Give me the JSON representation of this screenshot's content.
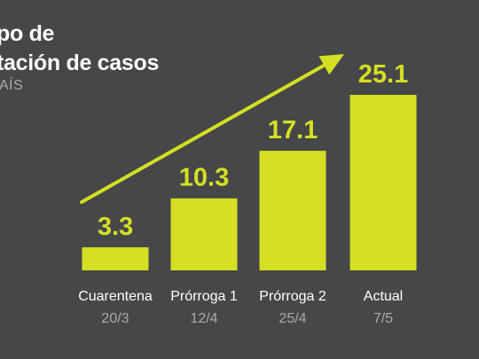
{
  "header": {
    "title_line1": "po de",
    "title_line2": "tación de casos",
    "subtitle": "AÍS"
  },
  "colors": {
    "background": "#464749",
    "accent": "#d4e021",
    "category_label": "#ffffff",
    "date_label": "#a9aaac"
  },
  "chart_data": {
    "type": "bar",
    "categories": [
      "Cuarentena",
      "Prórroga 1",
      "Prórroga 2",
      "Actual"
    ],
    "dates": [
      "20/3",
      "12/4",
      "25/4",
      "7/5"
    ],
    "values": [
      3.3,
      10.3,
      17.1,
      25.1
    ],
    "value_labels": [
      "3.3",
      "10.3",
      "17.1",
      "25.1"
    ],
    "ylim": [
      0,
      25.1
    ],
    "grid": false,
    "annotations": [
      "trend-arrow"
    ]
  }
}
